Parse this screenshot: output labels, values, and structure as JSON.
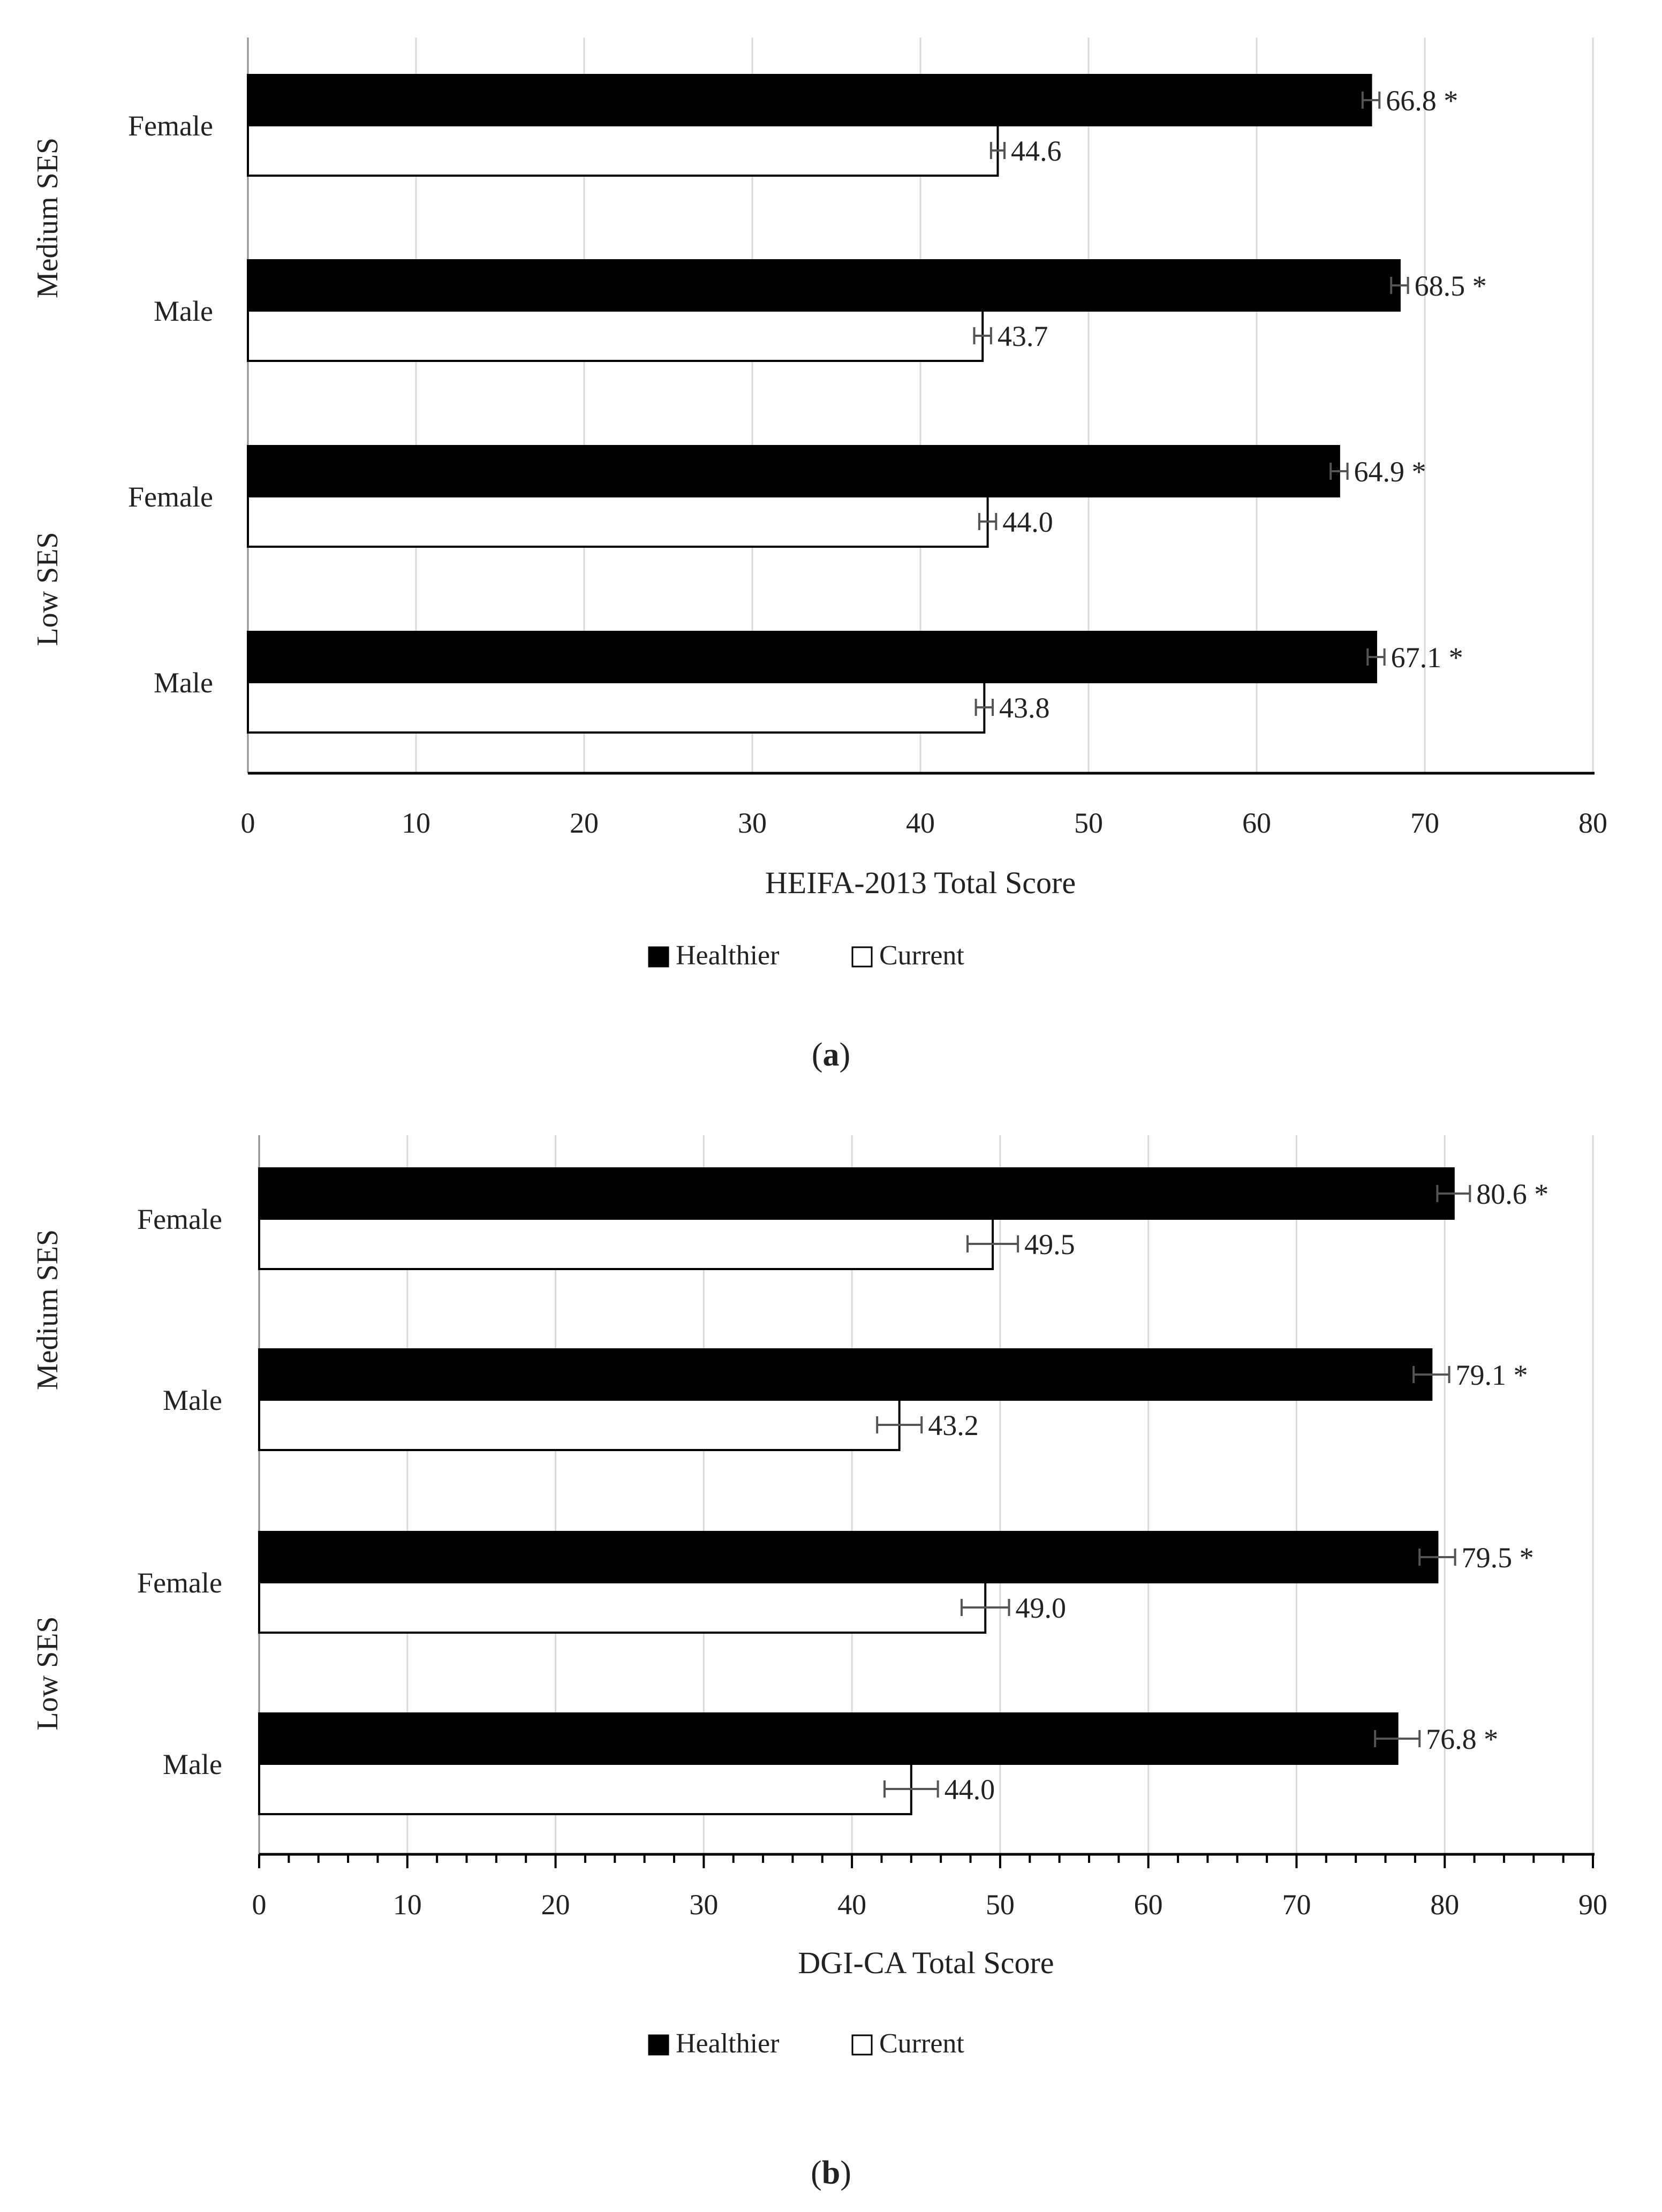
{
  "chart_data": [
    {
      "panel_label": "a",
      "type": "bar",
      "orientation": "horizontal",
      "categories": [
        "Female",
        "Male",
        "Female",
        "Male"
      ],
      "groups": [
        {
          "label": "Medium SES",
          "categories": [
            "Female",
            "Male"
          ]
        },
        {
          "label": "Low SES",
          "categories": [
            "Female",
            "Male"
          ]
        }
      ],
      "series": [
        {
          "name": "Healthier",
          "color": "#000000",
          "values": [
            66.8,
            68.5,
            64.9,
            67.1
          ],
          "labels": [
            "66.8 *",
            "68.5 *",
            "64.9 *",
            "67.1 *"
          ],
          "error": [
            0.5,
            0.5,
            0.5,
            0.5
          ]
        },
        {
          "name": "Current",
          "color": "#ffffff",
          "values": [
            44.6,
            43.7,
            44.0,
            43.8
          ],
          "labels": [
            "44.6",
            "43.7",
            "44.0",
            "43.8"
          ],
          "error": [
            0.4,
            0.5,
            0.5,
            0.5
          ]
        }
      ],
      "xlabel": "HEIFA-2013 Total Score",
      "xlim": [
        0,
        80
      ],
      "xticks": [
        0,
        10,
        20,
        30,
        40,
        50,
        60,
        70,
        80
      ],
      "xtick_labels": [
        "0",
        "10",
        "20",
        "30",
        "40",
        "50",
        "60",
        "70",
        "80"
      ],
      "grid": true,
      "legend": "bottom-center"
    },
    {
      "panel_label": "b",
      "type": "bar",
      "orientation": "horizontal",
      "categories": [
        "Female",
        "Male",
        "Female",
        "Male"
      ],
      "groups": [
        {
          "label": "Medium SES",
          "categories": [
            "Female",
            "Male"
          ]
        },
        {
          "label": "Low SES",
          "categories": [
            "Female",
            "Male"
          ]
        }
      ],
      "series": [
        {
          "name": "Healthier",
          "color": "#000000",
          "values": [
            80.6,
            79.1,
            79.5,
            76.8
          ],
          "labels": [
            "80.6 *",
            "79.1 *",
            "79.5 *",
            "76.8 *"
          ],
          "error": [
            1.1,
            1.2,
            1.2,
            1.5
          ]
        },
        {
          "name": "Current",
          "color": "#ffffff",
          "values": [
            49.5,
            43.2,
            49.0,
            44.0
          ],
          "labels": [
            "49.5",
            "43.2",
            "49.0",
            "44.0"
          ],
          "error": [
            1.7,
            1.5,
            1.6,
            1.8
          ]
        }
      ],
      "xlabel": "DGI-CA Total Score",
      "xlim": [
        0,
        90
      ],
      "xticks": [
        0,
        10,
        20,
        30,
        40,
        50,
        60,
        70,
        80,
        90
      ],
      "xtick_labels": [
        "0",
        "10",
        "20",
        "30",
        "40",
        "50",
        "60",
        "70",
        "80",
        "90"
      ],
      "grid": true,
      "legend": "bottom-center"
    }
  ]
}
